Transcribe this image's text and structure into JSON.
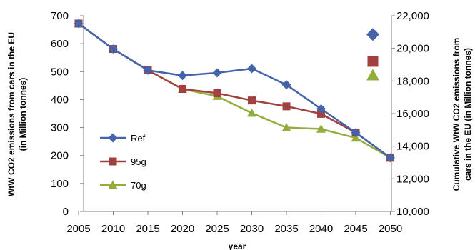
{
  "chart_data": {
    "type": "line",
    "x": [
      2005,
      2010,
      2015,
      2020,
      2025,
      2030,
      2035,
      2040,
      2045,
      2050
    ],
    "xlabel": "year",
    "ylabel": "WtW CO2 emissions from cars in the EU (in Million tonnes)",
    "y2label": "Cumulative WtW CO2 emissions from cars in the EU  (in Million tonnes)",
    "ylim": [
      0,
      700
    ],
    "y2lim": [
      10000,
      22000
    ],
    "yticks": [
      0,
      100,
      200,
      300,
      400,
      500,
      600,
      700
    ],
    "y2ticks": [
      "10,000",
      "12,000",
      "14,000",
      "16,000",
      "18,000",
      "20,000",
      "22,000"
    ],
    "grid": false,
    "legend_position": "left-bottom",
    "series": [
      {
        "name": "Ref",
        "color": "#4563ab",
        "marker": "diamond",
        "values": [
          672,
          581,
          505,
          486,
          496,
          511,
          453,
          367,
          282,
          192
        ],
        "cumulative": 20850
      },
      {
        "name": "95g",
        "color": "#a23f3f",
        "marker": "square",
        "values": [
          672,
          581,
          505,
          438,
          423,
          397,
          376,
          349,
          282,
          192
        ],
        "cumulative": 19200
      },
      {
        "name": "70g",
        "color": "#93ad3c",
        "marker": "triangle",
        "values": [
          672,
          581,
          505,
          438,
          412,
          352,
          300,
          295,
          263,
          192
        ],
        "cumulative": 18350
      }
    ]
  }
}
